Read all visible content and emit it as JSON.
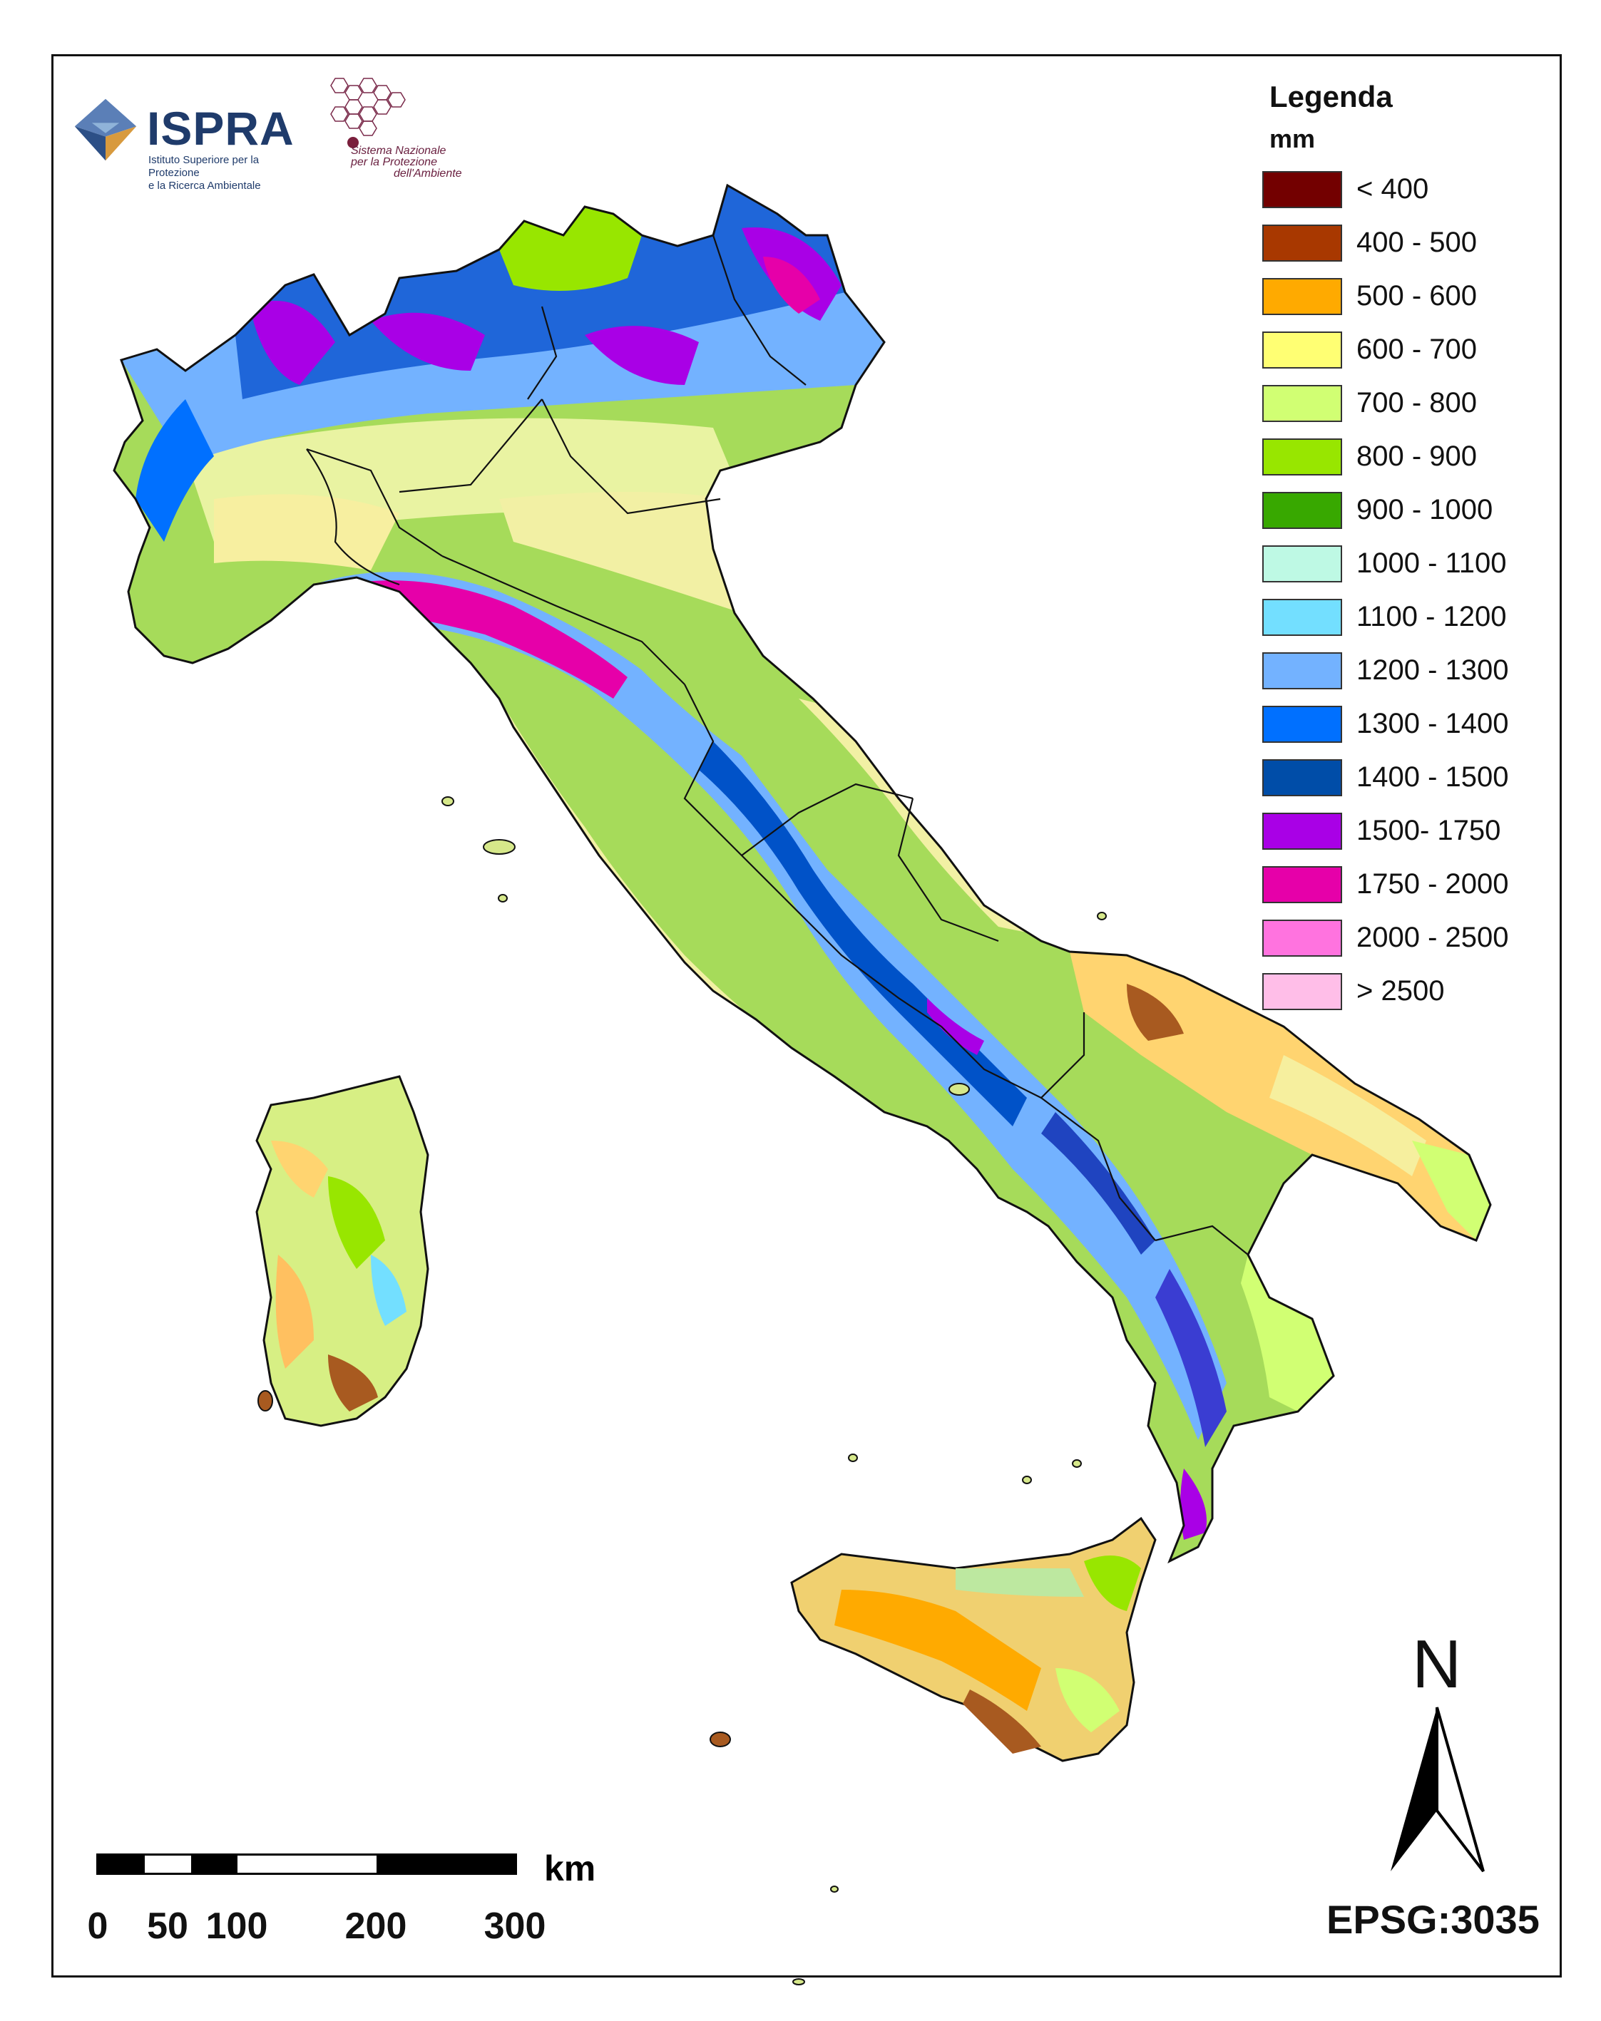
{
  "header": {
    "ispra_name": "ISPRA",
    "ispra_subtitle_1": "Istituto Superiore per la Protezione",
    "ispra_subtitle_2": "e la Ricerca Ambientale",
    "snpa_line_1": "Sistema Nazionale",
    "snpa_line_2": "per la Protezione",
    "snpa_line_3": "dell'Ambiente"
  },
  "legend": {
    "title": "Legenda",
    "unit": "mm",
    "classes": [
      {
        "label": "< 400",
        "color": "#730000"
      },
      {
        "label": "400 - 500",
        "color": "#a83800"
      },
      {
        "label": "500 - 600",
        "color": "#ffaa00"
      },
      {
        "label": "600 - 700",
        "color": "#ffff73"
      },
      {
        "label": "700 - 800",
        "color": "#d1ff73"
      },
      {
        "label": "800 - 900",
        "color": "#98e600"
      },
      {
        "label": "900 - 1000",
        "color": "#38a800"
      },
      {
        "label": "1000 - 1100",
        "color": "#bef9e4"
      },
      {
        "label": "1100 - 1200",
        "color": "#73dfff"
      },
      {
        "label": "1200 - 1300",
        "color": "#73b2ff"
      },
      {
        "label": "1300 - 1400",
        "color": "#0070ff"
      },
      {
        "label": "1400 - 1500",
        "color": "#004da8"
      },
      {
        "label": "1500- 1750",
        "color": "#a900e6"
      },
      {
        "label": "1750 - 2000",
        "color": "#e600a9"
      },
      {
        "label": "2000 - 2500",
        "color": "#ff73df"
      },
      {
        "label": "> 2500",
        "color": "#ffbee8"
      }
    ]
  },
  "scale_bar": {
    "unit": "km",
    "ticks": [
      "0",
      "50",
      "100",
      "200",
      "300"
    ]
  },
  "north_label": "N",
  "crs": "EPSG:3035"
}
